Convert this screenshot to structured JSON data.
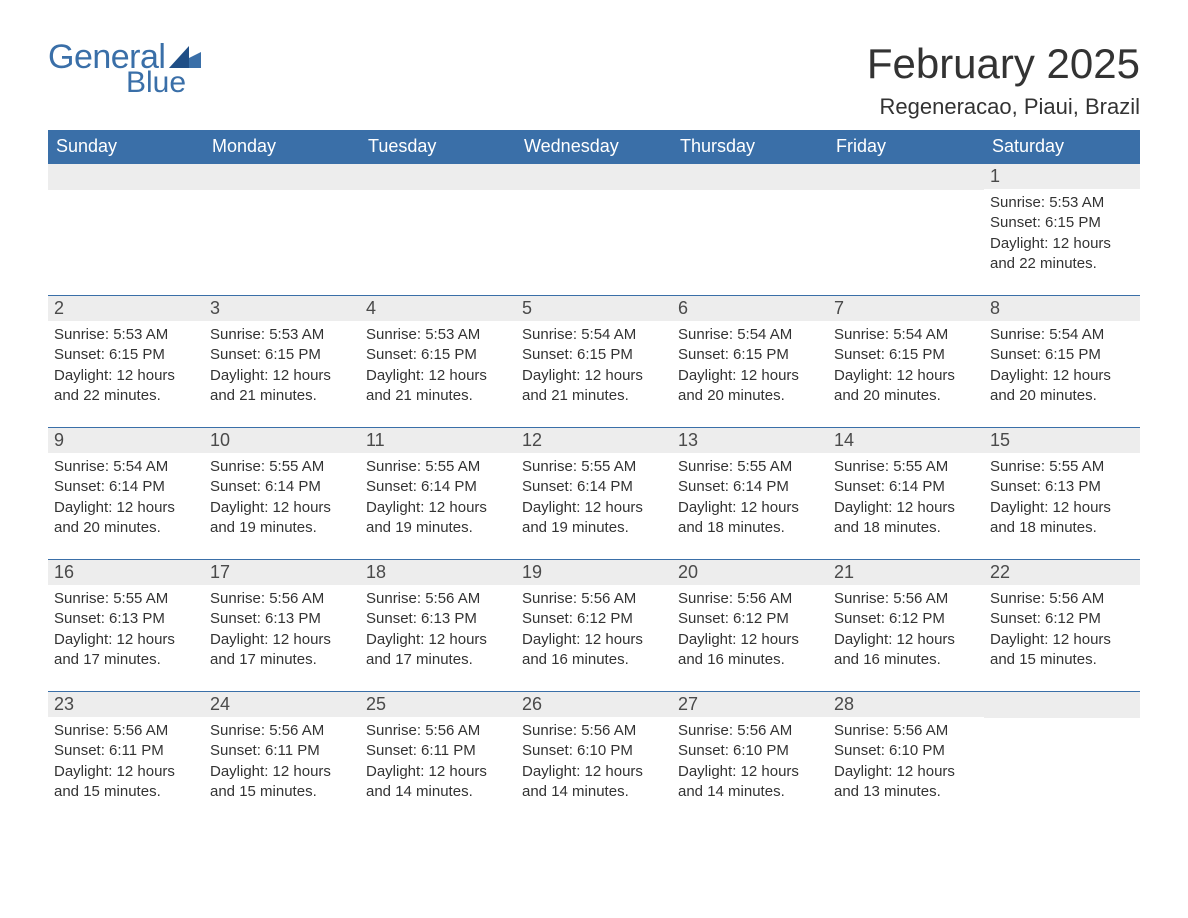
{
  "brand": {
    "word1": "General",
    "word2": "Blue",
    "color": "#3a6fa8"
  },
  "title": "February 2025",
  "location": "Regeneracao, Piaui, Brazil",
  "colors": {
    "header_bg": "#3a6fa8",
    "header_text": "#ffffff",
    "daynum_bg": "#ededed",
    "daynum_border": "#3a6fa8",
    "body_text": "#333333",
    "page_bg": "#ffffff"
  },
  "typography": {
    "title_fontsize": 42,
    "location_fontsize": 22,
    "header_fontsize": 18,
    "daynum_fontsize": 18,
    "body_fontsize": 15
  },
  "layout": {
    "columns": 7,
    "rows": 5,
    "leading_blanks": 6
  },
  "weekdays": [
    "Sunday",
    "Monday",
    "Tuesday",
    "Wednesday",
    "Thursday",
    "Friday",
    "Saturday"
  ],
  "days": [
    {
      "n": 1,
      "sunrise": "5:53 AM",
      "sunset": "6:15 PM",
      "daylight": "12 hours and 22 minutes."
    },
    {
      "n": 2,
      "sunrise": "5:53 AM",
      "sunset": "6:15 PM",
      "daylight": "12 hours and 22 minutes."
    },
    {
      "n": 3,
      "sunrise": "5:53 AM",
      "sunset": "6:15 PM",
      "daylight": "12 hours and 21 minutes."
    },
    {
      "n": 4,
      "sunrise": "5:53 AM",
      "sunset": "6:15 PM",
      "daylight": "12 hours and 21 minutes."
    },
    {
      "n": 5,
      "sunrise": "5:54 AM",
      "sunset": "6:15 PM",
      "daylight": "12 hours and 21 minutes."
    },
    {
      "n": 6,
      "sunrise": "5:54 AM",
      "sunset": "6:15 PM",
      "daylight": "12 hours and 20 minutes."
    },
    {
      "n": 7,
      "sunrise": "5:54 AM",
      "sunset": "6:15 PM",
      "daylight": "12 hours and 20 minutes."
    },
    {
      "n": 8,
      "sunrise": "5:54 AM",
      "sunset": "6:15 PM",
      "daylight": "12 hours and 20 minutes."
    },
    {
      "n": 9,
      "sunrise": "5:54 AM",
      "sunset": "6:14 PM",
      "daylight": "12 hours and 20 minutes."
    },
    {
      "n": 10,
      "sunrise": "5:55 AM",
      "sunset": "6:14 PM",
      "daylight": "12 hours and 19 minutes."
    },
    {
      "n": 11,
      "sunrise": "5:55 AM",
      "sunset": "6:14 PM",
      "daylight": "12 hours and 19 minutes."
    },
    {
      "n": 12,
      "sunrise": "5:55 AM",
      "sunset": "6:14 PM",
      "daylight": "12 hours and 19 minutes."
    },
    {
      "n": 13,
      "sunrise": "5:55 AM",
      "sunset": "6:14 PM",
      "daylight": "12 hours and 18 minutes."
    },
    {
      "n": 14,
      "sunrise": "5:55 AM",
      "sunset": "6:14 PM",
      "daylight": "12 hours and 18 minutes."
    },
    {
      "n": 15,
      "sunrise": "5:55 AM",
      "sunset": "6:13 PM",
      "daylight": "12 hours and 18 minutes."
    },
    {
      "n": 16,
      "sunrise": "5:55 AM",
      "sunset": "6:13 PM",
      "daylight": "12 hours and 17 minutes."
    },
    {
      "n": 17,
      "sunrise": "5:56 AM",
      "sunset": "6:13 PM",
      "daylight": "12 hours and 17 minutes."
    },
    {
      "n": 18,
      "sunrise": "5:56 AM",
      "sunset": "6:13 PM",
      "daylight": "12 hours and 17 minutes."
    },
    {
      "n": 19,
      "sunrise": "5:56 AM",
      "sunset": "6:12 PM",
      "daylight": "12 hours and 16 minutes."
    },
    {
      "n": 20,
      "sunrise": "5:56 AM",
      "sunset": "6:12 PM",
      "daylight": "12 hours and 16 minutes."
    },
    {
      "n": 21,
      "sunrise": "5:56 AM",
      "sunset": "6:12 PM",
      "daylight": "12 hours and 16 minutes."
    },
    {
      "n": 22,
      "sunrise": "5:56 AM",
      "sunset": "6:12 PM",
      "daylight": "12 hours and 15 minutes."
    },
    {
      "n": 23,
      "sunrise": "5:56 AM",
      "sunset": "6:11 PM",
      "daylight": "12 hours and 15 minutes."
    },
    {
      "n": 24,
      "sunrise": "5:56 AM",
      "sunset": "6:11 PM",
      "daylight": "12 hours and 15 minutes."
    },
    {
      "n": 25,
      "sunrise": "5:56 AM",
      "sunset": "6:11 PM",
      "daylight": "12 hours and 14 minutes."
    },
    {
      "n": 26,
      "sunrise": "5:56 AM",
      "sunset": "6:10 PM",
      "daylight": "12 hours and 14 minutes."
    },
    {
      "n": 27,
      "sunrise": "5:56 AM",
      "sunset": "6:10 PM",
      "daylight": "12 hours and 14 minutes."
    },
    {
      "n": 28,
      "sunrise": "5:56 AM",
      "sunset": "6:10 PM",
      "daylight": "12 hours and 13 minutes."
    }
  ],
  "labels": {
    "sunrise": "Sunrise:",
    "sunset": "Sunset:",
    "daylight": "Daylight:"
  }
}
